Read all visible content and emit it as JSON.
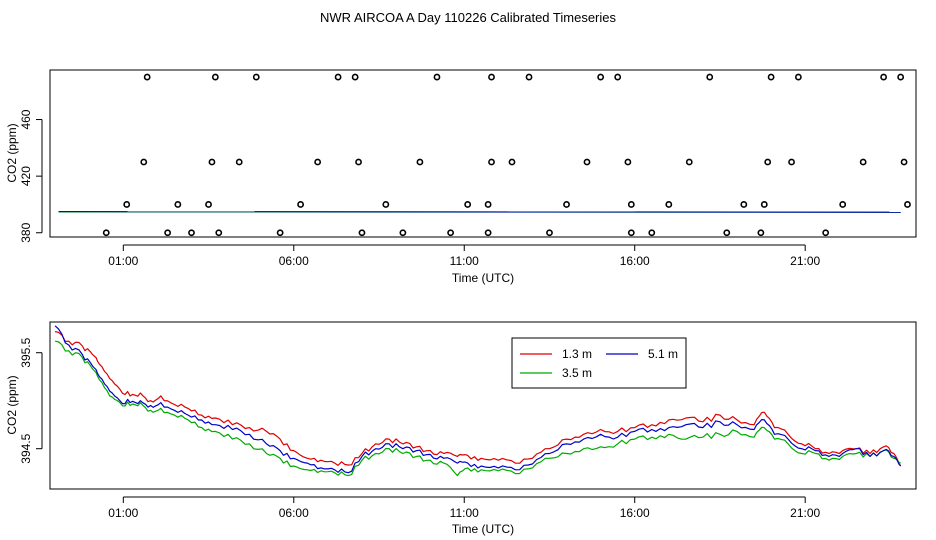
{
  "title": "NWR AIRCOA A  Day 110226  Calibrated Timeseries",
  "chart_data": [
    {
      "type": "scatter",
      "name": "top-panel",
      "xlabel": "Time (UTC)",
      "ylabel": "CO2 (ppm)",
      "xlim": [
        -1.15,
        24.25
      ],
      "ylim": [
        377,
        495
      ],
      "xticks": [
        {
          "value": 1,
          "label": "01:00"
        },
        {
          "value": 6,
          "label": "06:00"
        },
        {
          "value": 11,
          "label": "11:00"
        },
        {
          "value": 16,
          "label": "16:00"
        },
        {
          "value": 21,
          "label": "21:00"
        }
      ],
      "yticks": [
        {
          "value": 380,
          "label": "380"
        },
        {
          "value": 420,
          "label": "420"
        },
        {
          "value": 460,
          "label": "460"
        }
      ],
      "lines": [
        {
          "name": "1.3 m",
          "color": "#dd0000",
          "x": [
            -0.9,
            23.8
          ],
          "y": [
            395.0,
            394.6
          ]
        },
        {
          "name": "3.5 m",
          "color": "#00aa00",
          "x": [
            -0.9,
            23.8
          ],
          "y": [
            394.7,
            394.4
          ]
        },
        {
          "name": "5.1 m",
          "color": "#0000cc",
          "x": [
            -0.9,
            23.8
          ],
          "y": [
            394.9,
            394.5
          ]
        }
      ],
      "points": {
        "x": [
          0.5,
          1.1,
          1.6,
          1.7,
          2.3,
          2.6,
          3.0,
          3.5,
          3.6,
          3.7,
          3.8,
          4.4,
          4.9,
          5.6,
          6.2,
          6.7,
          7.3,
          7.8,
          7.9,
          8.0,
          8.7,
          9.2,
          9.7,
          10.2,
          10.6,
          11.1,
          11.7,
          11.7,
          11.8,
          11.8,
          12.4,
          12.9,
          13.5,
          14.0,
          14.6,
          15.0,
          15.5,
          15.8,
          15.9,
          15.9,
          16.5,
          17.0,
          17.6,
          18.2,
          18.7,
          19.2,
          19.7,
          19.8,
          19.9,
          20.0,
          20.6,
          20.8,
          21.6,
          22.1,
          22.7,
          23.3,
          23.8,
          23.9,
          24.0
        ],
        "y": [
          380,
          400,
          430,
          490,
          380,
          400,
          380,
          400,
          430,
          490,
          380,
          430,
          490,
          380,
          400,
          430,
          490,
          490,
          430,
          380,
          400,
          380,
          430,
          490,
          380,
          400,
          380,
          400,
          430,
          490,
          430,
          490,
          380,
          400,
          430,
          490,
          490,
          430,
          380,
          400,
          380,
          400,
          430,
          490,
          380,
          400,
          380,
          400,
          430,
          490,
          430,
          490,
          380,
          400,
          430,
          490,
          490,
          430,
          400
        ]
      }
    },
    {
      "type": "line",
      "name": "bottom-panel",
      "xlabel": "Time (UTC)",
      "ylabel": "CO2 (ppm)",
      "xlim": [
        -1.15,
        24.25
      ],
      "ylim": [
        394.08,
        395.82
      ],
      "xticks": [
        {
          "value": 1,
          "label": "01:00"
        },
        {
          "value": 6,
          "label": "06:00"
        },
        {
          "value": 11,
          "label": "11:00"
        },
        {
          "value": 16,
          "label": "16:00"
        },
        {
          "value": 21,
          "label": "21:00"
        }
      ],
      "yticks": [
        {
          "value": 394.5,
          "label": "394.5"
        },
        {
          "value": 395.5,
          "label": "395.5"
        }
      ],
      "legend": {
        "position": "top-right"
      },
      "series": [
        {
          "name": "1.3 m",
          "color": "#dd0000",
          "x": [
            -1.0,
            -0.6,
            -0.2,
            0.1,
            0.3,
            0.6,
            0.9,
            1.2,
            1.5,
            1.8,
            2.1,
            2.5,
            2.9,
            3.3,
            3.7,
            4.2,
            4.7,
            5.2,
            5.6,
            6.0,
            6.4,
            6.8,
            7.2,
            7.6,
            8.0,
            8.4,
            8.8,
            9.2,
            9.6,
            10.0,
            10.4,
            10.8,
            11.1,
            11.5,
            12.0,
            12.5,
            13.0,
            13.5,
            14.0,
            14.5,
            15.0,
            15.5,
            16.0,
            16.5,
            17.0,
            17.5,
            18.0,
            18.5,
            19.0,
            19.5,
            19.8,
            20.1,
            20.5,
            20.9,
            21.3,
            21.7,
            22.1,
            22.5,
            22.9,
            23.3,
            23.6,
            23.8
          ],
          "y": [
            395.72,
            395.62,
            395.57,
            395.48,
            395.38,
            395.23,
            395.12,
            395.05,
            395.08,
            395.0,
            395.05,
            394.96,
            394.92,
            394.85,
            394.82,
            394.75,
            394.72,
            394.68,
            394.6,
            394.48,
            394.4,
            394.38,
            394.35,
            394.33,
            394.45,
            394.55,
            394.6,
            394.55,
            394.52,
            394.48,
            394.45,
            394.42,
            394.43,
            394.4,
            394.38,
            394.35,
            394.4,
            394.5,
            394.6,
            394.65,
            394.7,
            394.68,
            394.72,
            394.75,
            394.8,
            394.82,
            394.78,
            394.85,
            394.8,
            394.75,
            394.88,
            394.72,
            394.65,
            394.55,
            394.5,
            394.45,
            394.48,
            394.5,
            394.45,
            394.52,
            394.45,
            394.32
          ]
        },
        {
          "name": "3.5 m",
          "color": "#00aa00",
          "x": [
            -1.0,
            -0.6,
            -0.2,
            0.1,
            0.3,
            0.6,
            0.9,
            1.2,
            1.5,
            1.8,
            2.1,
            2.5,
            2.9,
            3.3,
            3.7,
            4.2,
            4.7,
            5.2,
            5.6,
            6.0,
            6.4,
            6.8,
            7.2,
            7.6,
            8.0,
            8.4,
            8.8,
            9.2,
            9.6,
            10.0,
            10.4,
            10.8,
            11.1,
            11.5,
            12.0,
            12.5,
            13.0,
            13.5,
            14.0,
            14.5,
            15.0,
            15.5,
            16.0,
            16.5,
            17.0,
            17.5,
            18.0,
            18.5,
            19.0,
            19.5,
            19.8,
            20.1,
            20.5,
            20.9,
            21.3,
            21.7,
            22.1,
            22.5,
            22.9,
            23.3,
            23.6,
            23.8
          ],
          "y": [
            395.62,
            395.52,
            395.45,
            395.33,
            395.22,
            395.05,
            394.98,
            394.95,
            394.98,
            394.9,
            394.92,
            394.85,
            394.8,
            394.72,
            394.68,
            394.6,
            394.55,
            394.45,
            394.4,
            394.32,
            394.28,
            394.27,
            394.25,
            394.22,
            394.38,
            394.45,
            394.5,
            394.45,
            394.42,
            394.38,
            394.35,
            394.22,
            394.3,
            394.28,
            394.27,
            394.24,
            394.3,
            394.4,
            394.45,
            394.5,
            394.52,
            394.55,
            394.6,
            394.62,
            394.65,
            394.6,
            394.62,
            394.65,
            394.68,
            394.62,
            394.72,
            394.6,
            394.55,
            394.45,
            394.45,
            394.38,
            394.42,
            394.45,
            394.42,
            394.48,
            394.4,
            394.35
          ]
        },
        {
          "name": "5.1 m",
          "color": "#0000cc",
          "x": [
            -1.0,
            -0.6,
            -0.2,
            0.1,
            0.3,
            0.6,
            0.9,
            1.2,
            1.5,
            1.8,
            2.1,
            2.5,
            2.9,
            3.3,
            3.7,
            4.2,
            4.7,
            5.2,
            5.6,
            6.0,
            6.4,
            6.8,
            7.2,
            7.6,
            8.0,
            8.4,
            8.8,
            9.2,
            9.6,
            10.0,
            10.4,
            10.8,
            11.1,
            11.5,
            12.0,
            12.5,
            13.0,
            13.5,
            14.0,
            14.5,
            15.0,
            15.5,
            16.0,
            16.5,
            17.0,
            17.5,
            18.0,
            18.5,
            19.0,
            19.5,
            19.8,
            20.1,
            20.5,
            20.9,
            21.3,
            21.7,
            22.1,
            22.5,
            22.9,
            23.3,
            23.6,
            23.8
          ],
          "y": [
            395.78,
            395.58,
            395.48,
            395.36,
            395.25,
            395.1,
            395.0,
            394.98,
            395.0,
            394.95,
            394.98,
            394.9,
            394.85,
            394.8,
            394.75,
            394.7,
            394.65,
            394.55,
            394.48,
            394.4,
            394.35,
            394.3,
            394.28,
            394.25,
            394.42,
            394.5,
            394.55,
            394.5,
            394.48,
            394.44,
            394.4,
            394.35,
            394.35,
            394.32,
            394.3,
            394.28,
            394.34,
            394.45,
            394.55,
            394.6,
            394.65,
            394.62,
            394.68,
            394.7,
            394.72,
            394.75,
            394.72,
            394.78,
            394.75,
            394.7,
            394.8,
            394.65,
            394.6,
            394.5,
            394.48,
            394.42,
            394.45,
            394.5,
            394.42,
            394.48,
            394.42,
            394.32
          ]
        }
      ]
    }
  ]
}
